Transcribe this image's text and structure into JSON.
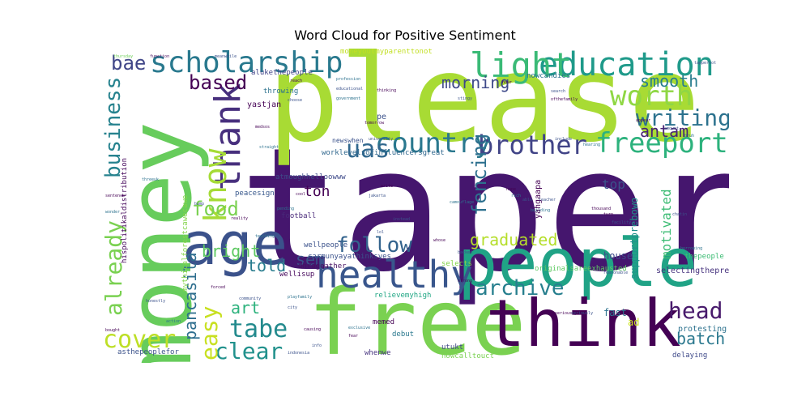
{
  "chart_data": {
    "type": "wordcloud",
    "title": "Word Cloud for Positive Sentiment",
    "words": [
      {
        "text": "tapera",
        "weight": 100,
        "color": "#45166e",
        "orientation": "horizontal"
      },
      {
        "text": "please",
        "weight": 80,
        "color": "#a8db34",
        "orientation": "horizontal"
      },
      {
        "text": "money",
        "weight": 55,
        "color": "#67cc5c",
        "orientation": "vertical"
      },
      {
        "text": "free",
        "weight": 58,
        "color": "#7ad151",
        "orientation": "horizontal"
      },
      {
        "text": "people",
        "weight": 44,
        "color": "#20a386",
        "orientation": "horizontal"
      },
      {
        "text": "think",
        "weight": 42,
        "color": "#440154",
        "orientation": "horizontal"
      },
      {
        "text": "age",
        "weight": 38,
        "color": "#3b528b",
        "orientation": "horizontal"
      },
      {
        "text": "healthy",
        "weight": 24,
        "color": "#39568c",
        "orientation": "horizontal"
      },
      {
        "text": "education",
        "weight": 22,
        "color": "#1f9a8a",
        "orientation": "horizontal"
      },
      {
        "text": "scholarship",
        "weight": 20,
        "color": "#29798e",
        "orientation": "horizontal"
      },
      {
        "text": "light",
        "weight": 20,
        "color": "#3aba76",
        "orientation": "horizontal"
      },
      {
        "text": "thank",
        "weight": 22,
        "color": "#472f7d",
        "orientation": "vertical"
      },
      {
        "text": "know",
        "weight": 20,
        "color": "#a5db36",
        "orientation": "vertical"
      },
      {
        "text": "worth",
        "weight": 18,
        "color": "#8fd744",
        "orientation": "horizontal"
      },
      {
        "text": "freeport",
        "weight": 18,
        "color": "#2db27d",
        "orientation": "horizontal"
      },
      {
        "text": "country",
        "weight": 18,
        "color": "#2a788e",
        "orientation": "horizontal"
      },
      {
        "text": "brother",
        "weight": 18,
        "color": "#414487",
        "orientation": "horizontal"
      },
      {
        "text": "writing",
        "weight": 16,
        "color": "#2c728e",
        "orientation": "horizontal"
      },
      {
        "text": "uas",
        "weight": 16,
        "color": "#31688e",
        "orientation": "horizontal"
      },
      {
        "text": "follow",
        "weight": 16,
        "color": "#33638d",
        "orientation": "horizontal"
      },
      {
        "text": "archive",
        "weight": 16,
        "color": "#277f8e",
        "orientation": "horizontal"
      },
      {
        "text": "head",
        "weight": 16,
        "color": "#481a6c",
        "orientation": "horizontal"
      },
      {
        "text": "tabe",
        "weight": 16,
        "color": "#238a8d",
        "orientation": "horizontal"
      },
      {
        "text": "cover",
        "weight": 16,
        "color": "#bddf26",
        "orientation": "horizontal"
      },
      {
        "text": "clear",
        "weight": 16,
        "color": "#21918c",
        "orientation": "horizontal"
      },
      {
        "text": "easy",
        "weight": 14,
        "color": "#c8e020",
        "orientation": "vertical"
      },
      {
        "text": "already",
        "weight": 14,
        "color": "#7ad151",
        "orientation": "vertical"
      },
      {
        "text": "business",
        "weight": 14,
        "color": "#26828e",
        "orientation": "vertical"
      },
      {
        "text": "fencing",
        "weight": 14,
        "color": "#2d708e",
        "orientation": "vertical"
      },
      {
        "text": "based",
        "weight": 14,
        "color": "#440154",
        "orientation": "horizontal"
      },
      {
        "text": "bae",
        "weight": 13,
        "color": "#404688",
        "orientation": "horizontal"
      },
      {
        "text": "food",
        "weight": 14,
        "color": "#7ad151",
        "orientation": "horizontal"
      },
      {
        "text": "bright",
        "weight": 12,
        "color": "#5ec962",
        "orientation": "horizontal"
      },
      {
        "text": "sem",
        "weight": 12,
        "color": "#3b528b",
        "orientation": "horizontal"
      },
      {
        "text": "graduated",
        "weight": 12,
        "color": "#b5de2b",
        "orientation": "horizontal"
      },
      {
        "text": "smooth",
        "weight": 12,
        "color": "#287d8e",
        "orientation": "horizontal"
      },
      {
        "text": "antam",
        "weight": 12,
        "color": "#482475",
        "orientation": "horizontal"
      },
      {
        "text": "morning",
        "weight": 12,
        "color": "#3e4989",
        "orientation": "horizontal"
      },
      {
        "text": "pancasila",
        "weight": 12,
        "color": "#2e6e8e",
        "orientation": "vertical"
      },
      {
        "text": "batch",
        "weight": 12,
        "color": "#2a788e",
        "orientation": "horizontal"
      },
      {
        "text": "told",
        "weight": 11,
        "color": "#287c8e",
        "orientation": "horizontal"
      },
      {
        "text": "art",
        "weight": 11,
        "color": "#2db27d",
        "orientation": "horizontal"
      },
      {
        "text": "motivated",
        "weight": 10,
        "color": "#3dbc74",
        "orientation": "vertical"
      },
      {
        "text": "top",
        "weight": 10,
        "color": "#3b528b",
        "orientation": "horizontal"
      },
      {
        "text": "ton",
        "weight": 10,
        "color": "#440154",
        "orientation": "horizontal"
      },
      {
        "text": "supportprebowo",
        "weight": 8,
        "color": "#21918c",
        "orientation": "vertical"
      },
      {
        "text": "yahgaapa",
        "weight": 6,
        "color": "#440154",
        "orientation": "vertical"
      },
      {
        "text": "selectingtheprewun",
        "weight": 6,
        "color": "#46327e",
        "orientation": "horizontal"
      },
      {
        "text": "protesting",
        "weight": 6,
        "color": "#2c728e",
        "orientation": "horizontal"
      },
      {
        "text": "delaying",
        "weight": 5,
        "color": "#3e4989",
        "orientation": "horizontal"
      },
      {
        "text": "alukethepeople",
        "weight": 5,
        "color": "#404387",
        "orientation": "horizontal"
      },
      {
        "text": "moneyoutmyparenttonot",
        "weight": 5,
        "color": "#c2df23",
        "orientation": "horizontal"
      },
      {
        "text": "nowcandies",
        "weight": 5,
        "color": "#2c728e",
        "orientation": "horizontal"
      },
      {
        "text": "hispolitikaldistribution",
        "weight": 5,
        "color": "#46085c",
        "orientation": "vertical"
      },
      {
        "text": "mythicalforestcawecawe",
        "weight": 5,
        "color": "#84d44b",
        "orientation": "vertical"
      },
      {
        "text": "worklevelsofinfluencersgreat",
        "weight": 5,
        "color": "#31688e",
        "orientation": "horizontal"
      },
      {
        "text": "atmoughhelloowww",
        "weight": 5,
        "color": "#3e4a89",
        "orientation": "horizontal"
      },
      {
        "text": "carmunyayathinksyes",
        "weight": 5,
        "color": "#3b528b",
        "orientation": "horizontal"
      },
      {
        "text": "dhrageather",
        "weight": 5,
        "color": "#471063",
        "orientation": "horizontal"
      },
      {
        "text": "wellpeople",
        "weight": 5,
        "color": "#3b528b",
        "orientation": "horizontal"
      },
      {
        "text": "wellisup",
        "weight": 5,
        "color": "#46085c",
        "orientation": "horizontal"
      },
      {
        "text": "relievemyhigh",
        "weight": 5,
        "color": "#22a785",
        "orientation": "horizontal"
      },
      {
        "text": "peacesign",
        "weight": 5,
        "color": "#38588c",
        "orientation": "horizontal"
      },
      {
        "text": "football",
        "weight": 5,
        "color": "#482979",
        "orientation": "horizontal"
      },
      {
        "text": "originalsareexhausted",
        "weight": 5,
        "color": "#5ec962",
        "orientation": "horizontal"
      },
      {
        "text": "thepeople",
        "weight": 5,
        "color": "#3dbc74",
        "orientation": "horizontal"
      },
      {
        "text": "house",
        "weight": 6,
        "color": "#3e4989",
        "orientation": "horizontal"
      },
      {
        "text": "fast",
        "weight": 6,
        "color": "#2c728e",
        "orientation": "horizontal"
      },
      {
        "text": "ad",
        "weight": 6,
        "color": "#c8e020",
        "orientation": "horizontal"
      },
      {
        "text": "selects",
        "weight": 5,
        "color": "#84d44b",
        "orientation": "horizontal"
      },
      {
        "text": "memed",
        "weight": 5,
        "color": "#440154",
        "orientation": "horizontal"
      },
      {
        "text": "debut",
        "weight": 5,
        "color": "#2a788e",
        "orientation": "horizontal"
      },
      {
        "text": "utukt",
        "weight": 5,
        "color": "#404688",
        "orientation": "horizontal"
      },
      {
        "text": "whenwe",
        "weight": 5,
        "color": "#46337f",
        "orientation": "horizontal"
      },
      {
        "text": "nowcalltouct",
        "weight": 5,
        "color": "#7ad151",
        "orientation": "horizontal"
      },
      {
        "text": "asthepeoplefor",
        "weight": 5,
        "color": "#3b528b",
        "orientation": "horizontal"
      },
      {
        "text": "newswhen",
        "weight": 5,
        "color": "#3b528b",
        "orientation": "horizontal"
      },
      {
        "text": "pe",
        "weight": 5,
        "color": "#3b528b",
        "orientation": "horizontal"
      },
      {
        "text": "yastjan",
        "weight": 5,
        "color": "#440154",
        "orientation": "horizontal"
      },
      {
        "text": "throwing",
        "weight": 5,
        "color": "#2c728e",
        "orientation": "horizontal"
      },
      {
        "text": "thursday",
        "weight": 3,
        "color": "#6ece58",
        "orientation": "horizontal"
      },
      {
        "text": "function",
        "weight": 3,
        "color": "#46085c",
        "orientation": "horizontal"
      },
      {
        "text": "meanwhile",
        "weight": 3,
        "color": "#3b528b",
        "orientation": "horizontal"
      },
      {
        "text": "tapperhot",
        "weight": 3,
        "color": "#3b528b",
        "orientation": "horizontal"
      },
      {
        "text": "reach",
        "weight": 3,
        "color": "#440154",
        "orientation": "horizontal"
      },
      {
        "text": "profession",
        "weight": 3,
        "color": "#2c728e",
        "orientation": "horizontal"
      },
      {
        "text": "educational",
        "weight": 3,
        "color": "#3b528b",
        "orientation": "horizontal"
      },
      {
        "text": "thinking",
        "weight": 3,
        "color": "#440154",
        "orientation": "horizontal"
      },
      {
        "text": "government",
        "weight": 3,
        "color": "#2c728e",
        "orientation": "horizontal"
      },
      {
        "text": "tomorrow",
        "weight": 3,
        "color": "#440154",
        "orientation": "horizontal"
      },
      {
        "text": "stingy",
        "weight": 3,
        "color": "#3b528b",
        "orientation": "horizontal"
      },
      {
        "text": "search",
        "weight": 3,
        "color": "#3b528b",
        "orientation": "horizontal"
      },
      {
        "text": "ofthefamily",
        "weight": 3,
        "color": "#440154",
        "orientation": "horizontal"
      },
      {
        "text": "university",
        "weight": 3,
        "color": "#3b528b",
        "orientation": "horizontal"
      },
      {
        "text": "teacher",
        "weight": 3,
        "color": "#3b528b",
        "orientation": "horizontal"
      },
      {
        "text": "hope",
        "weight": 3,
        "color": "#440154",
        "orientation": "horizontal"
      },
      {
        "text": "jakarta",
        "weight": 3,
        "color": "#3b528b",
        "orientation": "horizontal"
      },
      {
        "text": "pending",
        "weight": 3,
        "color": "#2c728e",
        "orientation": "horizontal"
      },
      {
        "text": "cool",
        "weight": 3,
        "color": "#440154",
        "orientation": "horizontal"
      },
      {
        "text": "instead",
        "weight": 3,
        "color": "#3b528b",
        "orientation": "horizontal"
      },
      {
        "text": "building",
        "weight": 3,
        "color": "#2c728e",
        "orientation": "horizontal"
      },
      {
        "text": "thousand",
        "weight": 3,
        "color": "#440154",
        "orientation": "horizontal"
      },
      {
        "text": "chatin",
        "weight": 3,
        "color": "#3b528b",
        "orientation": "horizontal"
      },
      {
        "text": "turn",
        "weight": 3,
        "color": "#440154",
        "orientation": "horizontal"
      },
      {
        "text": "facility",
        "weight": 3,
        "color": "#3b528b",
        "orientation": "horizontal"
      },
      {
        "text": "borrowing",
        "weight": 3,
        "color": "#2c728e",
        "orientation": "horizontal"
      },
      {
        "text": "seriously",
        "weight": 3,
        "color": "#440154",
        "orientation": "horizontal"
      },
      {
        "text": "reasonable",
        "weight": 3,
        "color": "#3b528b",
        "orientation": "horizontal"
      },
      {
        "text": "camouflage",
        "weight": 3,
        "color": "#2c728e",
        "orientation": "horizontal"
      },
      {
        "text": "backed",
        "weight": 3,
        "color": "#3b528b",
        "orientation": "horizontal"
      },
      {
        "text": "whose",
        "weight": 3,
        "color": "#440154",
        "orientation": "horizontal"
      },
      {
        "text": "community",
        "weight": 3,
        "color": "#3b528b",
        "orientation": "horizontal"
      },
      {
        "text": "playfamily",
        "weight": 3,
        "color": "#2c728e",
        "orientation": "horizontal"
      },
      {
        "text": "causing",
        "weight": 3,
        "color": "#440154",
        "orientation": "horizontal"
      },
      {
        "text": "honestly",
        "weight": 3,
        "color": "#3b528b",
        "orientation": "horizontal"
      },
      {
        "text": "action",
        "weight": 3,
        "color": "#2c728e",
        "orientation": "horizontal"
      },
      {
        "text": "bought",
        "weight": 3,
        "color": "#440154",
        "orientation": "horizontal"
      },
      {
        "text": "info",
        "weight": 3,
        "color": "#3b528b",
        "orientation": "horizontal"
      },
      {
        "text": "fear",
        "weight": 3,
        "color": "#440154",
        "orientation": "horizontal"
      },
      {
        "text": "exclusive",
        "weight": 3,
        "color": "#2c728e",
        "orientation": "horizontal"
      },
      {
        "text": "indonesia",
        "weight": 3,
        "color": "#3b528b",
        "orientation": "horizontal"
      },
      {
        "text": "reality",
        "weight": 3,
        "color": "#440154",
        "orientation": "horizontal"
      },
      {
        "text": "teaching",
        "weight": 3,
        "color": "#2c728e",
        "orientation": "horizontal"
      },
      {
        "text": "city",
        "weight": 3,
        "color": "#3b528b",
        "orientation": "horizontal"
      },
      {
        "text": "forced",
        "weight": 3,
        "color": "#440154",
        "orientation": "horizontal"
      },
      {
        "text": "bump",
        "weight": 3,
        "color": "#3b528b",
        "orientation": "horizontal"
      },
      {
        "text": "threeuk",
        "weight": 3,
        "color": "#2c728e",
        "orientation": "horizontal"
      },
      {
        "text": "sentence",
        "weight": 3,
        "color": "#440154",
        "orientation": "horizontal"
      },
      {
        "text": "seriously",
        "weight": 3,
        "color": "#3b528b",
        "orientation": "horizontal"
      },
      {
        "text": "wonder",
        "weight": 3,
        "color": "#2c728e",
        "orientation": "horizontal"
      },
      {
        "text": "strong",
        "weight": 3,
        "color": "#440154",
        "orientation": "horizontal"
      },
      {
        "text": "include",
        "weight": 3,
        "color": "#3b528b",
        "orientation": "horizontal"
      },
      {
        "text": "hearing",
        "weight": 3,
        "color": "#2c728e",
        "orientation": "horizontal"
      },
      {
        "text": "appear",
        "weight": 3,
        "color": "#440154",
        "orientation": "horizontal"
      },
      {
        "text": "amount",
        "weight": 3,
        "color": "#3b528b",
        "orientation": "horizontal"
      },
      {
        "text": "bruh",
        "weight": 3,
        "color": "#2c728e",
        "orientation": "horizontal"
      },
      {
        "text": "hour",
        "weight": 3,
        "color": "#440154",
        "orientation": "horizontal"
      },
      {
        "text": "able",
        "weight": 3,
        "color": "#3b528b",
        "orientation": "horizontal"
      },
      {
        "text": "rich",
        "weight": 3,
        "color": "#2c728e",
        "orientation": "horizontal"
      },
      {
        "text": "write",
        "weight": 3,
        "color": "#440154",
        "orientation": "horizontal"
      },
      {
        "text": "choose",
        "weight": 3,
        "color": "#3b528b",
        "orientation": "horizontal"
      },
      {
        "text": "straight",
        "weight": 3,
        "color": "#2c728e",
        "orientation": "horizontal"
      },
      {
        "text": "medsos",
        "weight": 3,
        "color": "#440154",
        "orientation": "horizontal"
      },
      {
        "text": "lol",
        "weight": 3,
        "color": "#3b528b",
        "orientation": "horizontal"
      }
    ]
  }
}
